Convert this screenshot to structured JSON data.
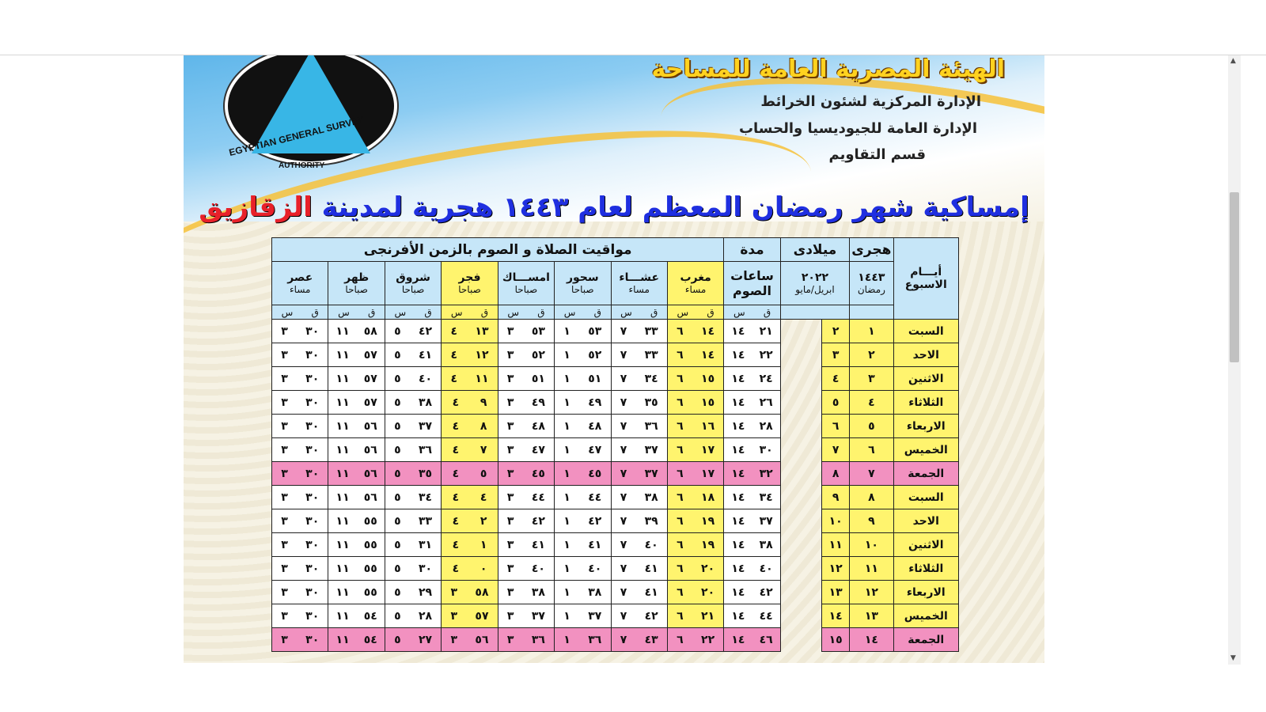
{
  "header": {
    "org_name": "الهيئة المصرية العامة للمساحة",
    "dept1": "الإدارة المركزية لشئون الخرائط",
    "dept2": "الإدارة العامة للجيوديسيا والحساب",
    "dept3": "قسم التقاويم",
    "logo_text": "EGYPTIAN GENERAL SURVEY",
    "logo_text2": "AUTHORITY",
    "title": "إمساكية شهر رمضان المعظم لعام ١٤٤٣ هجرية لمدينة",
    "city": "الزقازيق"
  },
  "table": {
    "prayer_group": "مواقيت الصلاة و الصوم بالزمن الأفرنجى",
    "days_label": "أيـــام الاسبوع",
    "hijri_label": "هجرى",
    "hijri_year": "١٤٤٣",
    "hijri_month": "رمضان",
    "greg_label": "ميلادى",
    "greg_year": "٢٠٢٢",
    "greg_months": "ابريل/مايو",
    "duration_label": "مدة",
    "duration_sub": "ساعات الصوم",
    "columns": [
      {
        "name": "مغرب",
        "sub": "مساء",
        "highlight": true
      },
      {
        "name": "عشـــاء",
        "sub": "مساء",
        "highlight": false
      },
      {
        "name": "سحور",
        "sub": "صباحا",
        "highlight": false
      },
      {
        "name": "امســـاك",
        "sub": "صباحا",
        "highlight": false
      },
      {
        "name": "فجر",
        "sub": "صباحا",
        "highlight": true
      },
      {
        "name": "شروق",
        "sub": "صباحا",
        "highlight": false
      },
      {
        "name": "ظهر",
        "sub": "صباحا",
        "highlight": false
      },
      {
        "name": "عصر",
        "sub": "مساء",
        "highlight": false
      }
    ],
    "hour_label": "س",
    "minute_label": "ق",
    "colors": {
      "header": "#c6e6f8",
      "highlight": "#fff46e",
      "friday": "#f291c0"
    },
    "rows": [
      {
        "day": "السبت",
        "hijri": "١",
        "greg": "٢",
        "times": [
          [
            "١٤",
            "٢١"
          ],
          [
            "٦",
            "١٤"
          ],
          [
            "٧",
            "٣٣"
          ],
          [
            "١",
            "٥٣"
          ],
          [
            "٣",
            "٥٣"
          ],
          [
            "٤",
            "١٣"
          ],
          [
            "٥",
            "٤٢"
          ],
          [
            "١١",
            "٥٨"
          ],
          [
            "٣",
            "٣٠"
          ]
        ]
      },
      {
        "day": "الاحد",
        "hijri": "٢",
        "greg": "٣",
        "times": [
          [
            "١٤",
            "٢٢"
          ],
          [
            "٦",
            "١٤"
          ],
          [
            "٧",
            "٣٣"
          ],
          [
            "١",
            "٥٢"
          ],
          [
            "٣",
            "٥٢"
          ],
          [
            "٤",
            "١٢"
          ],
          [
            "٥",
            "٤١"
          ],
          [
            "١١",
            "٥٧"
          ],
          [
            "٣",
            "٣٠"
          ]
        ]
      },
      {
        "day": "الاثنين",
        "hijri": "٣",
        "greg": "٤",
        "times": [
          [
            "١٤",
            "٢٤"
          ],
          [
            "٦",
            "١٥"
          ],
          [
            "٧",
            "٣٤"
          ],
          [
            "١",
            "٥١"
          ],
          [
            "٣",
            "٥١"
          ],
          [
            "٤",
            "١١"
          ],
          [
            "٥",
            "٤٠"
          ],
          [
            "١١",
            "٥٧"
          ],
          [
            "٣",
            "٣٠"
          ]
        ]
      },
      {
        "day": "الثلاثاء",
        "hijri": "٤",
        "greg": "٥",
        "times": [
          [
            "١٤",
            "٢٦"
          ],
          [
            "٦",
            "١٥"
          ],
          [
            "٧",
            "٣٥"
          ],
          [
            "١",
            "٤٩"
          ],
          [
            "٣",
            "٤٩"
          ],
          [
            "٤",
            "٩"
          ],
          [
            "٥",
            "٣٨"
          ],
          [
            "١١",
            "٥٧"
          ],
          [
            "٣",
            "٣٠"
          ]
        ]
      },
      {
        "day": "الاربعاء",
        "hijri": "٥",
        "greg": "٦",
        "times": [
          [
            "١٤",
            "٢٨"
          ],
          [
            "٦",
            "١٦"
          ],
          [
            "٧",
            "٣٦"
          ],
          [
            "١",
            "٤٨"
          ],
          [
            "٣",
            "٤٨"
          ],
          [
            "٤",
            "٨"
          ],
          [
            "٥",
            "٣٧"
          ],
          [
            "١١",
            "٥٦"
          ],
          [
            "٣",
            "٣٠"
          ]
        ]
      },
      {
        "day": "الخميس",
        "hijri": "٦",
        "greg": "٧",
        "times": [
          [
            "١٤",
            "٣٠"
          ],
          [
            "٦",
            "١٧"
          ],
          [
            "٧",
            "٣٧"
          ],
          [
            "١",
            "٤٧"
          ],
          [
            "٣",
            "٤٧"
          ],
          [
            "٤",
            "٧"
          ],
          [
            "٥",
            "٣٦"
          ],
          [
            "١١",
            "٥٦"
          ],
          [
            "٣",
            "٣٠"
          ]
        ]
      },
      {
        "day": "الجمعة",
        "hijri": "٧",
        "greg": "٨",
        "friday": true,
        "times": [
          [
            "١٤",
            "٣٢"
          ],
          [
            "٦",
            "١٧"
          ],
          [
            "٧",
            "٣٧"
          ],
          [
            "١",
            "٤٥"
          ],
          [
            "٣",
            "٤٥"
          ],
          [
            "٤",
            "٥"
          ],
          [
            "٥",
            "٣٥"
          ],
          [
            "١١",
            "٥٦"
          ],
          [
            "٣",
            "٣٠"
          ]
        ]
      },
      {
        "day": "السبت",
        "hijri": "٨",
        "greg": "٩",
        "times": [
          [
            "١٤",
            "٣٤"
          ],
          [
            "٦",
            "١٨"
          ],
          [
            "٧",
            "٣٨"
          ],
          [
            "١",
            "٤٤"
          ],
          [
            "٣",
            "٤٤"
          ],
          [
            "٤",
            "٤"
          ],
          [
            "٥",
            "٣٤"
          ],
          [
            "١١",
            "٥٦"
          ],
          [
            "٣",
            "٣٠"
          ]
        ]
      },
      {
        "day": "الاحد",
        "hijri": "٩",
        "greg": "١٠",
        "times": [
          [
            "١٤",
            "٣٧"
          ],
          [
            "٦",
            "١٩"
          ],
          [
            "٧",
            "٣٩"
          ],
          [
            "١",
            "٤٢"
          ],
          [
            "٣",
            "٤٢"
          ],
          [
            "٤",
            "٢"
          ],
          [
            "٥",
            "٣٣"
          ],
          [
            "١١",
            "٥٥"
          ],
          [
            "٣",
            "٣٠"
          ]
        ]
      },
      {
        "day": "الاثنين",
        "hijri": "١٠",
        "greg": "١١",
        "times": [
          [
            "١٤",
            "٣٨"
          ],
          [
            "٦",
            "١٩"
          ],
          [
            "٧",
            "٤٠"
          ],
          [
            "١",
            "٤١"
          ],
          [
            "٣",
            "٤١"
          ],
          [
            "٤",
            "١"
          ],
          [
            "٥",
            "٣١"
          ],
          [
            "١١",
            "٥٥"
          ],
          [
            "٣",
            "٣٠"
          ]
        ]
      },
      {
        "day": "الثلاثاء",
        "hijri": "١١",
        "greg": "١٢",
        "times": [
          [
            "١٤",
            "٤٠"
          ],
          [
            "٦",
            "٢٠"
          ],
          [
            "٧",
            "٤١"
          ],
          [
            "١",
            "٤٠"
          ],
          [
            "٣",
            "٤٠"
          ],
          [
            "٤",
            "٠"
          ],
          [
            "٥",
            "٣٠"
          ],
          [
            "١١",
            "٥٥"
          ],
          [
            "٣",
            "٣٠"
          ]
        ]
      },
      {
        "day": "الاربعاء",
        "hijri": "١٢",
        "greg": "١٣",
        "times": [
          [
            "١٤",
            "٤٢"
          ],
          [
            "٦",
            "٢٠"
          ],
          [
            "٧",
            "٤١"
          ],
          [
            "١",
            "٣٨"
          ],
          [
            "٣",
            "٣٨"
          ],
          [
            "٣",
            "٥٨"
          ],
          [
            "٥",
            "٢٩"
          ],
          [
            "١١",
            "٥٥"
          ],
          [
            "٣",
            "٣٠"
          ]
        ]
      },
      {
        "day": "الخميس",
        "hijri": "١٣",
        "greg": "١٤",
        "times": [
          [
            "١٤",
            "٤٤"
          ],
          [
            "٦",
            "٢١"
          ],
          [
            "٧",
            "٤٢"
          ],
          [
            "١",
            "٣٧"
          ],
          [
            "٣",
            "٣٧"
          ],
          [
            "٣",
            "٥٧"
          ],
          [
            "٥",
            "٢٨"
          ],
          [
            "١١",
            "٥٤"
          ],
          [
            "٣",
            "٣٠"
          ]
        ]
      },
      {
        "day": "الجمعة",
        "hijri": "١٤",
        "greg": "١٥",
        "friday": true,
        "times": [
          [
            "١٤",
            "٤٦"
          ],
          [
            "٦",
            "٢٢"
          ],
          [
            "٧",
            "٤٣"
          ],
          [
            "١",
            "٣٦"
          ],
          [
            "٣",
            "٣٦"
          ],
          [
            "٣",
            "٥٦"
          ],
          [
            "٥",
            "٢٧"
          ],
          [
            "١١",
            "٥٤"
          ],
          [
            "٣",
            "٣٠"
          ]
        ]
      }
    ]
  }
}
